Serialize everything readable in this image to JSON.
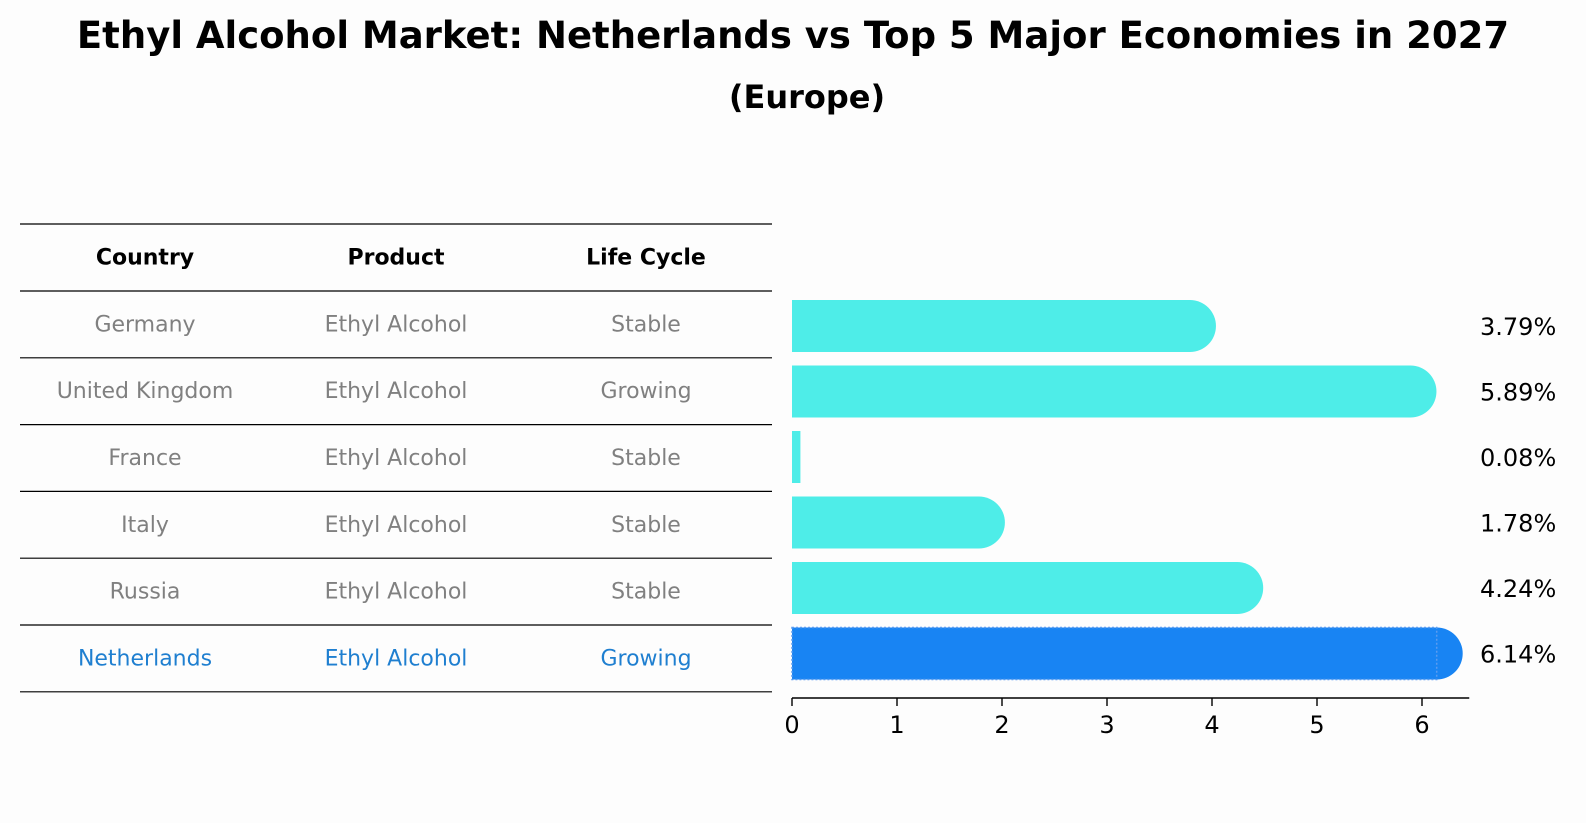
{
  "title": "Ethyl Alcohol Market: Netherlands vs Top 5 Major Economies in 2027",
  "subtitle": "(Europe)",
  "table": {
    "headers": [
      "Country",
      "Product",
      "Life Cycle"
    ],
    "rows": [
      [
        "Germany",
        "Ethyl Alcohol",
        "Stable"
      ],
      [
        "United Kingdom",
        "Ethyl Alcohol",
        "Growing"
      ],
      [
        "France",
        "Ethyl Alcohol",
        "Stable"
      ],
      [
        "Italy",
        "Ethyl Alcohol",
        "Stable"
      ],
      [
        "Russia",
        "Ethyl Alcohol",
        "Stable"
      ],
      [
        "Netherlands",
        "Ethyl Alcohol",
        "Growing"
      ]
    ],
    "highlight_row": 5
  },
  "colors": {
    "bar": "#4eede8",
    "highlight": "#1884f3",
    "row_text": "#808080",
    "highlight_text": "#1f7fd0",
    "header_text": "#000000"
  },
  "chart_data": {
    "type": "bar",
    "orientation": "horizontal",
    "categories": [
      "Germany",
      "United Kingdom",
      "France",
      "Italy",
      "Russia",
      "Netherlands"
    ],
    "values": [
      3.79,
      5.89,
      0.08,
      1.78,
      4.24,
      6.14
    ],
    "value_labels": [
      "3.79%",
      "5.89%",
      "0.08%",
      "1.78%",
      "4.24%",
      "6.14%"
    ],
    "xticks": [
      0,
      1,
      2,
      3,
      4,
      5,
      6
    ],
    "xlim": [
      0,
      6.45
    ],
    "highlight_category": "Netherlands",
    "grid": false
  }
}
